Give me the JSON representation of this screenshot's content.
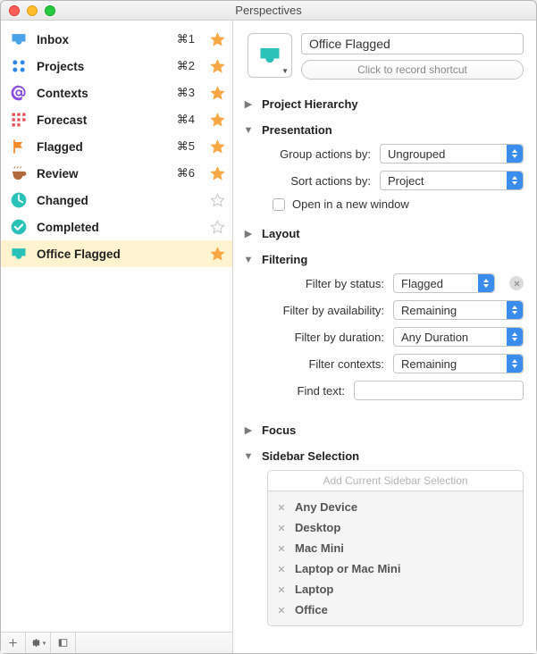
{
  "window": {
    "title": "Perspectives"
  },
  "colors": {
    "star_active": "#f7a845",
    "star_inactive": "#c9c9c9",
    "selected_row": "#fff4cf",
    "accent": "#3b8ded"
  },
  "sidebar": {
    "items": [
      {
        "icon": "inbox",
        "icon_color": "#4aa3e8",
        "label": "Inbox",
        "shortcut": "⌘1",
        "starred": true,
        "selected": false
      },
      {
        "icon": "projects",
        "icon_color": "#2f87e6",
        "label": "Projects",
        "shortcut": "⌘2",
        "starred": true,
        "selected": false
      },
      {
        "icon": "contexts",
        "icon_color": "#8a4de0",
        "label": "Contexts",
        "shortcut": "⌘3",
        "starred": true,
        "selected": false
      },
      {
        "icon": "forecast",
        "icon_color": "#e64f5a",
        "label": "Forecast",
        "shortcut": "⌘4",
        "starred": true,
        "selected": false
      },
      {
        "icon": "flagged",
        "icon_color": "#f38b2a",
        "label": "Flagged",
        "shortcut": "⌘5",
        "starred": true,
        "selected": false
      },
      {
        "icon": "review",
        "icon_color": "#b06a3c",
        "label": "Review",
        "shortcut": "⌘6",
        "starred": true,
        "selected": false
      },
      {
        "icon": "changed",
        "icon_color": "#2ac1b8",
        "label": "Changed",
        "shortcut": "",
        "starred": false,
        "selected": false
      },
      {
        "icon": "completed",
        "icon_color": "#2ac1b8",
        "label": "Completed",
        "shortcut": "",
        "starred": false,
        "selected": false
      },
      {
        "icon": "tray",
        "icon_color": "#2ac1b8",
        "label": "Office Flagged",
        "shortcut": "",
        "starred": true,
        "selected": true
      }
    ]
  },
  "details": {
    "name": "Office Flagged",
    "shortcut_placeholder": "Click to record shortcut",
    "sections": {
      "project_hierarchy": {
        "title": "Project Hierarchy",
        "open": false
      },
      "presentation": {
        "title": "Presentation",
        "open": true,
        "group_label": "Group actions by:",
        "group_value": "Ungrouped",
        "sort_label": "Sort actions by:",
        "sort_value": "Project",
        "new_window_label": "Open in a new window",
        "new_window_checked": false
      },
      "layout": {
        "title": "Layout",
        "open": false
      },
      "filtering": {
        "title": "Filtering",
        "open": true,
        "rows": [
          {
            "label": "Filter by status:",
            "value": "Flagged",
            "removable": true
          },
          {
            "label": "Filter by availability:",
            "value": "Remaining",
            "removable": false
          },
          {
            "label": "Filter by duration:",
            "value": "Any Duration",
            "removable": false
          },
          {
            "label": "Filter contexts:",
            "value": "Remaining",
            "removable": false
          }
        ],
        "find_label": "Find text:",
        "find_value": ""
      },
      "focus": {
        "title": "Focus",
        "open": false
      },
      "sidebar_selection": {
        "title": "Sidebar Selection",
        "open": true,
        "add_label": "Add Current Sidebar Selection",
        "items": [
          "Any Device",
          "Desktop",
          "Mac Mini",
          "Laptop or Mac Mini",
          "Laptop",
          "Office"
        ]
      }
    }
  }
}
